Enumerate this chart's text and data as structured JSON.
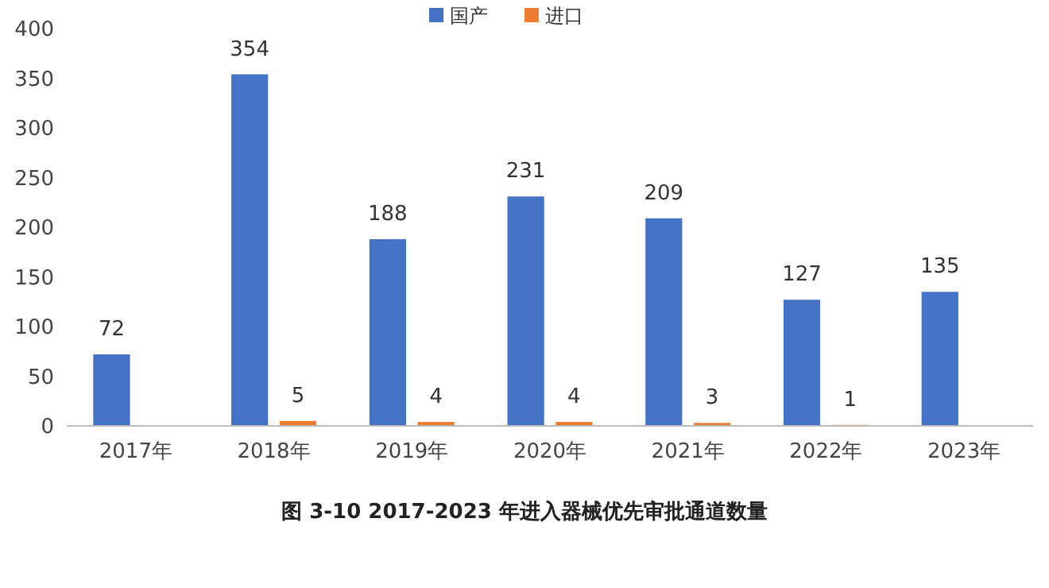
{
  "chart_data": {
    "type": "bar",
    "title": "图 3-10 2017-2023 年进入器械优先审批通道数量",
    "categories": [
      "2017年",
      "2018年",
      "2019年",
      "2020年",
      "2021年",
      "2022年",
      "2023年"
    ],
    "series": [
      {
        "name": "国产",
        "color": "#4472c4",
        "values": [
          72,
          354,
          188,
          231,
          209,
          127,
          135
        ]
      },
      {
        "name": "进口",
        "color": "#ed7d31",
        "values": [
          null,
          5,
          4,
          4,
          3,
          1,
          null
        ]
      }
    ],
    "ylim": [
      0,
      400
    ],
    "yticks": [
      0,
      50,
      100,
      150,
      200,
      250,
      300,
      350,
      400
    ],
    "grid": false,
    "legend": "top",
    "data_labels": true
  }
}
